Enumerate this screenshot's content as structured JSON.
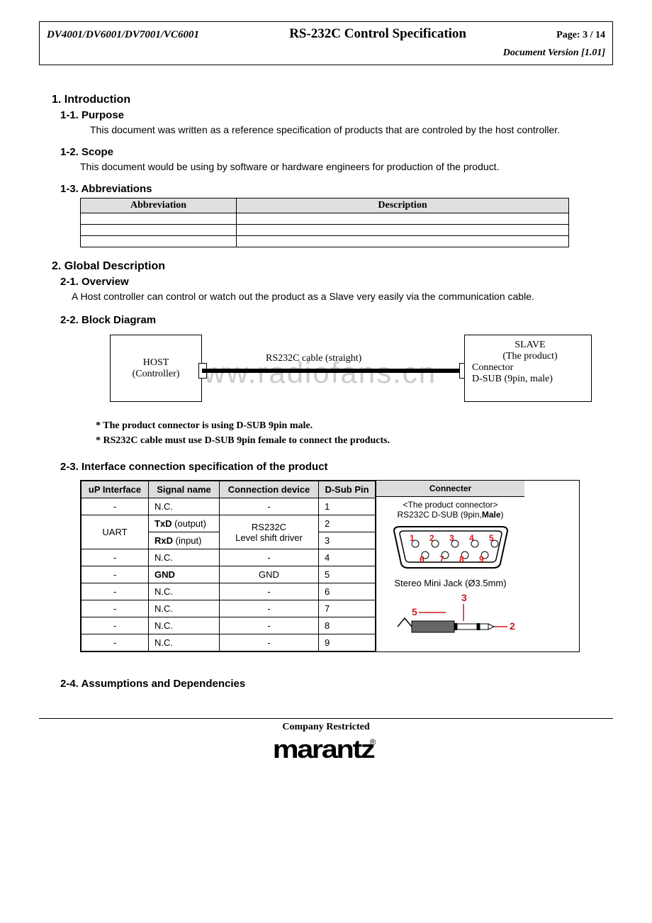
{
  "header": {
    "models": "DV4001/DV6001/DV7001/VC6001",
    "title": "RS-232C Control Specification",
    "page": "Page: 3 / 14",
    "version": "Document Version [1.01]"
  },
  "s1": {
    "h": "1.    Introduction",
    "s11h": "1-1.  Purpose",
    "s11t": "This document was written as a reference specification of products that are controled by the host controller.",
    "s12h": "1-2.  Scope",
    "s12t": "This document would be using by software or hardware engineers for production of the product.",
    "s13h": "1-3.  Abbreviations",
    "abbr_cols": {
      "c1": "Abbreviation",
      "c2": "Description"
    }
  },
  "s2": {
    "h": "2.    Global Description",
    "s21h": "2-1.  Overview",
    "s21t": "A Host controller can control or watch out the product as a Slave very easily via the communication cable.",
    "s22h": "2-2.  Block Diagram",
    "host1": "HOST",
    "host2": "(Controller)",
    "cable": "RS232C cable (straight)",
    "slave1": "SLAVE",
    "slave2": "(The product)",
    "slave3": "Connector",
    "slave4": "D-SUB (9pin, male)",
    "watermark": "www.radiofans.cn",
    "note1": "* The product connector is using D-SUB 9pin male.",
    "note2": "* RS232C cable must use D-SUB 9pin female to connect the products.",
    "s23h": "2-3.  Interface connection specification of the product",
    "s24h": "2-4.  Assumptions and Dependencies"
  },
  "conn": {
    "headers": {
      "c1": "uP Interface",
      "c2": "Signal name",
      "c3": "Connection device",
      "c4": "D-Sub Pin",
      "c5": "Connecter"
    },
    "rows": [
      {
        "i": "-",
        "s": "N.C.",
        "d": "-",
        "p": "1"
      },
      {
        "i": "UART",
        "s": "TxD",
        "sx": " (output)",
        "d": "RS232C",
        "p": "2"
      },
      {
        "i": "",
        "s": "RxD",
        "sx": " (input)",
        "d": "Level shift driver",
        "p": "3"
      },
      {
        "i": "-",
        "s": "N.C.",
        "d": "-",
        "p": "4"
      },
      {
        "i": "-",
        "s": "GND",
        "sb": true,
        "d": "GND",
        "p": "5"
      },
      {
        "i": "-",
        "s": "N.C.",
        "d": "-",
        "p": "6"
      },
      {
        "i": "-",
        "s": "N.C.",
        "d": "-",
        "p": "7"
      },
      {
        "i": "-",
        "s": "N.C.",
        "d": "-",
        "p": "8"
      },
      {
        "i": "-",
        "s": "N.C.",
        "d": "-",
        "p": "9"
      }
    ],
    "cell_title": "<The product connector>",
    "cell_sub": "RS232C D-SUB (9pin,",
    "cell_sub_b": "Male",
    "cell_sub_end": ")",
    "jack_label": "Stereo Mini Jack (Ø3.5mm)",
    "dsub_pins_top": [
      "1",
      "2",
      "3",
      "4",
      "5"
    ],
    "dsub_pins_bot": [
      "6",
      "7",
      "8",
      "9"
    ],
    "pin_color": "#d01818",
    "jack_labels": {
      "a": "5",
      "b": "3",
      "c": "2"
    }
  },
  "footer": {
    "text": "Company Restricted",
    "logo": "marantz"
  }
}
